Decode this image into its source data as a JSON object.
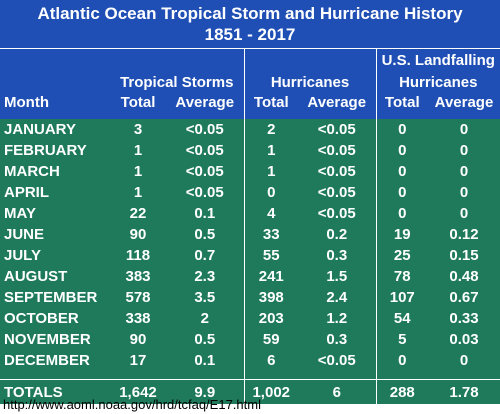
{
  "title": {
    "line1": "Atlantic Ocean Tropical Storm and Hurricane History",
    "line2": "1851 - 2017"
  },
  "headers": {
    "group1": "Tropical Storms",
    "group2": "Hurricanes",
    "group3_line1": "U.S. Landfalling",
    "group3_line2": "Hurricanes",
    "month": "Month",
    "total": "Total",
    "average": "Average"
  },
  "rows": [
    {
      "month": "JANUARY",
      "ts_total": "3",
      "ts_avg": "<0.05",
      "h_total": "2",
      "h_avg": "<0.05",
      "us_total": "0",
      "us_avg": "0"
    },
    {
      "month": "FEBRUARY",
      "ts_total": "1",
      "ts_avg": "<0.05",
      "h_total": "1",
      "h_avg": "<0.05",
      "us_total": "0",
      "us_avg": "0"
    },
    {
      "month": "MARCH",
      "ts_total": "1",
      "ts_avg": "<0.05",
      "h_total": "1",
      "h_avg": "<0.05",
      "us_total": "0",
      "us_avg": "0"
    },
    {
      "month": "APRIL",
      "ts_total": "1",
      "ts_avg": "<0.05",
      "h_total": "0",
      "h_avg": "<0.05",
      "us_total": "0",
      "us_avg": "0"
    },
    {
      "month": "MAY",
      "ts_total": "22",
      "ts_avg": "0.1",
      "h_total": "4",
      "h_avg": "<0.05",
      "us_total": "0",
      "us_avg": "0"
    },
    {
      "month": "JUNE",
      "ts_total": "90",
      "ts_avg": "0.5",
      "h_total": "33",
      "h_avg": "0.2",
      "us_total": "19",
      "us_avg": "0.12"
    },
    {
      "month": "JULY",
      "ts_total": "118",
      "ts_avg": "0.7",
      "h_total": "55",
      "h_avg": "0.3",
      "us_total": "25",
      "us_avg": "0.15"
    },
    {
      "month": "AUGUST",
      "ts_total": "383",
      "ts_avg": "2.3",
      "h_total": "241",
      "h_avg": "1.5",
      "us_total": "78",
      "us_avg": "0.48"
    },
    {
      "month": "SEPTEMBER",
      "ts_total": "578",
      "ts_avg": "3.5",
      "h_total": "398",
      "h_avg": "2.4",
      "us_total": "107",
      "us_avg": "0.67"
    },
    {
      "month": "OCTOBER",
      "ts_total": "338",
      "ts_avg": "2",
      "h_total": "203",
      "h_avg": "1.2",
      "us_total": "54",
      "us_avg": "0.33"
    },
    {
      "month": "NOVEMBER",
      "ts_total": "90",
      "ts_avg": "0.5",
      "h_total": "59",
      "h_avg": "0.3",
      "us_total": "5",
      "us_avg": "0.03"
    },
    {
      "month": "DECEMBER",
      "ts_total": "17",
      "ts_avg": "0.1",
      "h_total": "6",
      "h_avg": "<0.05",
      "us_total": "0",
      "us_avg": "0"
    }
  ],
  "totals": {
    "label": "TOTALS",
    "ts_total": "1,642",
    "ts_avg": "9.9",
    "h_total": "1,002",
    "h_avg": "6",
    "us_total": "288",
    "us_avg": "1.78"
  },
  "footer": {
    "source": "http://www.aoml.noaa.gov/hrd/tcfaq/E17.html"
  },
  "colors": {
    "header_bg": "#1f4fb5",
    "body_bg": "#1e7a5a",
    "text": "#ffffff"
  }
}
